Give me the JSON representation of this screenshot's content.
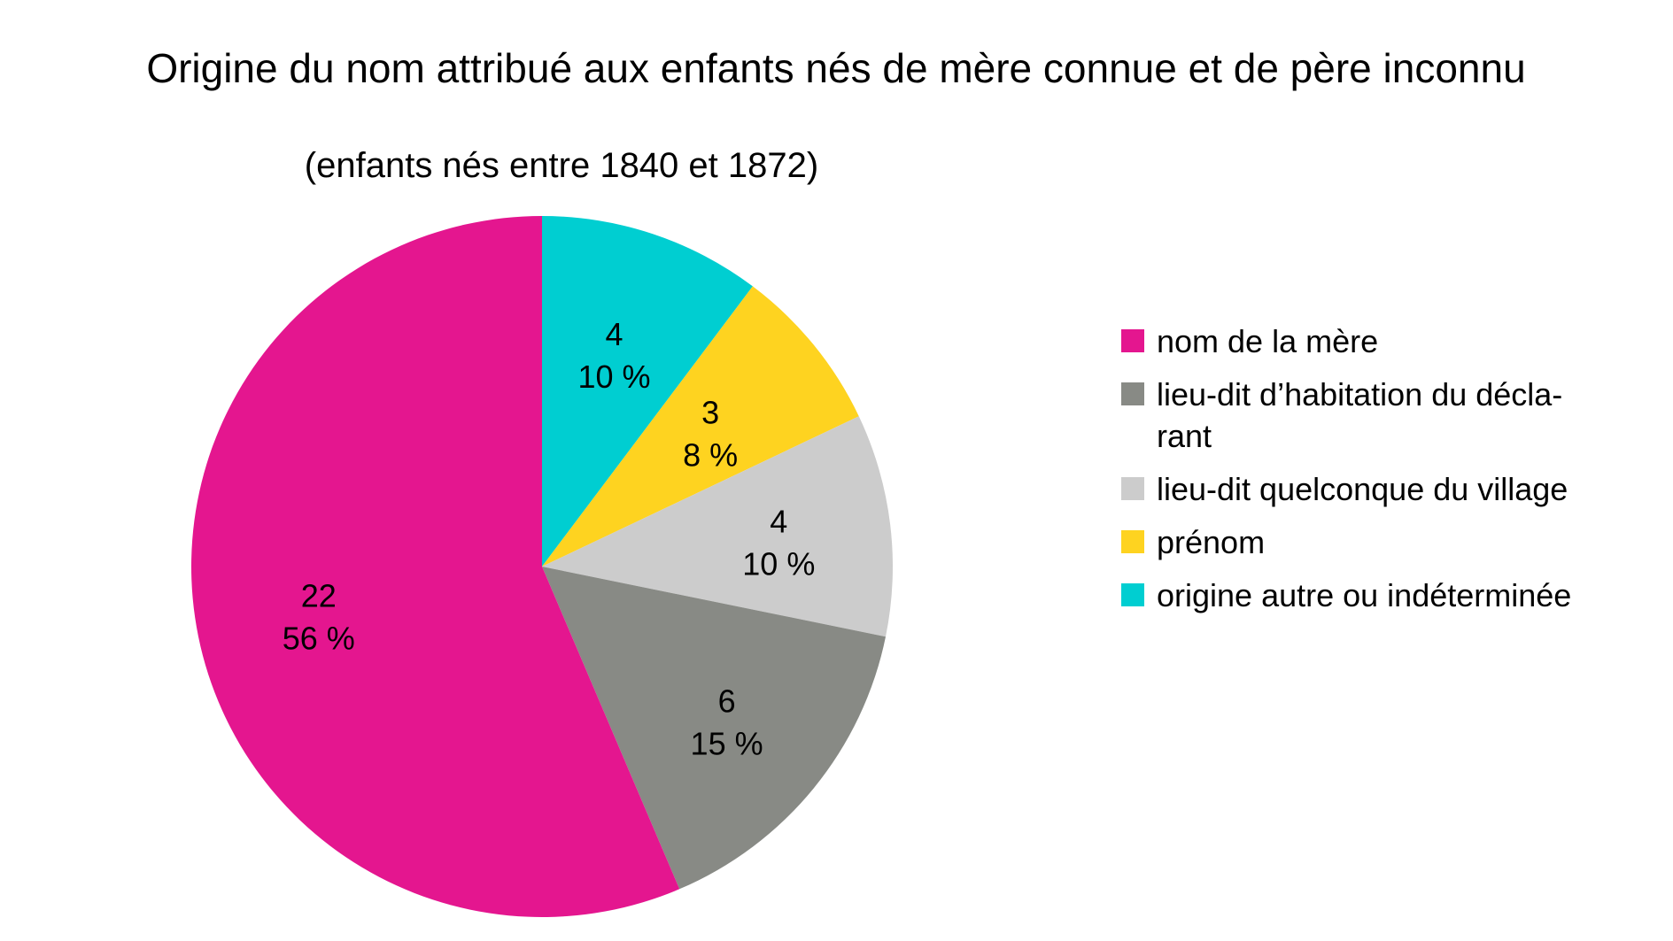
{
  "chart_data": {
    "type": "pie",
    "title": "Origine du nom attribué aux enfants nés de mère connue et de père inconnu",
    "subtitle": "(enfants nés entre 1840 et 1872)",
    "slices": [
      {
        "label": "origine autre ou indéterminée",
        "value": 4,
        "percent_label": "10 %",
        "color": "#00CED1"
      },
      {
        "label": "prénom",
        "value": 3,
        "percent_label": "8 %",
        "color": "#FED320"
      },
      {
        "label": "lieu-dit quelconque du village",
        "value": 4,
        "percent_label": "10 %",
        "color": "#CCCCCC"
      },
      {
        "label": "lieu-dit d’habitation du décla-rant",
        "value": 6,
        "percent_label": "15 %",
        "color": "#888A85"
      },
      {
        "label": "nom de la mère",
        "value": 22,
        "percent_label": "56 %",
        "color": "#E4168F"
      }
    ],
    "legend": {
      "position": "right",
      "items": [
        {
          "lines": [
            "nom de la mère"
          ],
          "color": "#E4168F"
        },
        {
          "lines": [
            "lieu-dit d’habitation du décla-",
            "rant"
          ],
          "color": "#888A85"
        },
        {
          "lines": [
            "lieu-dit quelconque du village"
          ],
          "color": "#CCCCCC"
        },
        {
          "lines": [
            "prénom"
          ],
          "color": "#FED320"
        },
        {
          "lines": [
            "origine autre ou indéterminée"
          ],
          "color": "#00CED1"
        }
      ]
    }
  }
}
